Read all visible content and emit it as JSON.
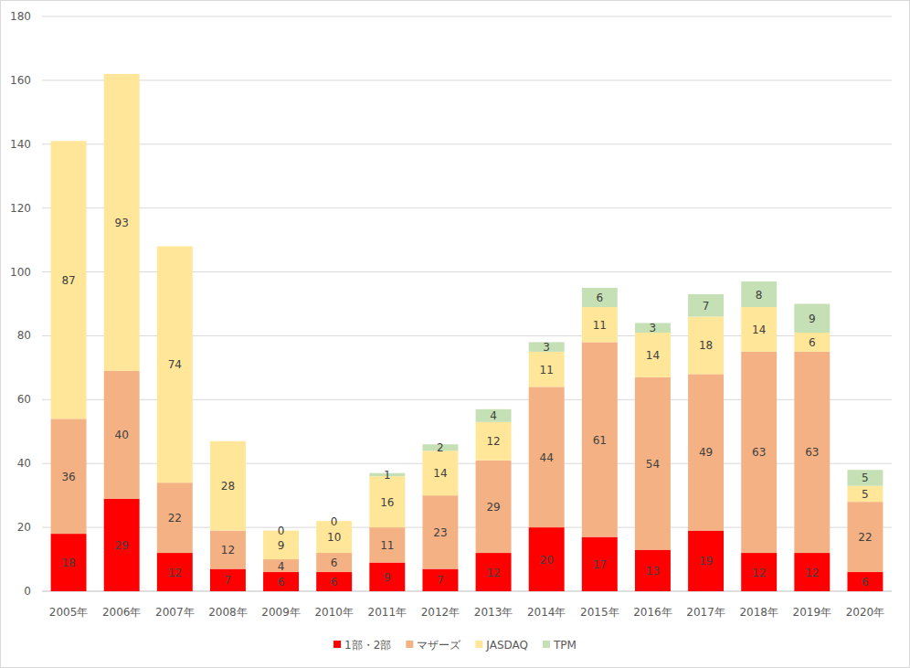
{
  "chart_data": {
    "type": "bar",
    "stacked": true,
    "data_labels": true,
    "grid": true,
    "legend": "bottom",
    "categories": [
      "2005年",
      "2006年",
      "2007年",
      "2008年",
      "2009年",
      "2010年",
      "2011年",
      "2012年",
      "2013年",
      "2014年",
      "2015年",
      "2016年",
      "2017年",
      "2018年",
      "2019年",
      "2020年"
    ],
    "series": [
      {
        "name": "1部・2部",
        "color": "#ff0000",
        "values": [
          18,
          29,
          12,
          7,
          6,
          6,
          9,
          7,
          12,
          20,
          17,
          13,
          19,
          12,
          12,
          6
        ]
      },
      {
        "name": "マザーズ",
        "color": "#f4b183",
        "values": [
          36,
          40,
          22,
          12,
          4,
          6,
          11,
          23,
          29,
          44,
          61,
          54,
          49,
          63,
          63,
          22
        ]
      },
      {
        "name": "JASDAQ",
        "color": "#ffe699",
        "values": [
          87,
          93,
          74,
          28,
          9,
          10,
          16,
          14,
          12,
          11,
          11,
          14,
          18,
          14,
          6,
          5
        ]
      },
      {
        "name": "TPM",
        "color": "#c5e0b4",
        "values": [
          null,
          null,
          null,
          null,
          0,
          0,
          1,
          2,
          4,
          3,
          6,
          3,
          7,
          8,
          9,
          5
        ]
      }
    ],
    "ylim": [
      0,
      180
    ],
    "yticks": [
      0,
      20,
      40,
      60,
      80,
      100,
      120,
      140,
      160,
      180
    ]
  }
}
